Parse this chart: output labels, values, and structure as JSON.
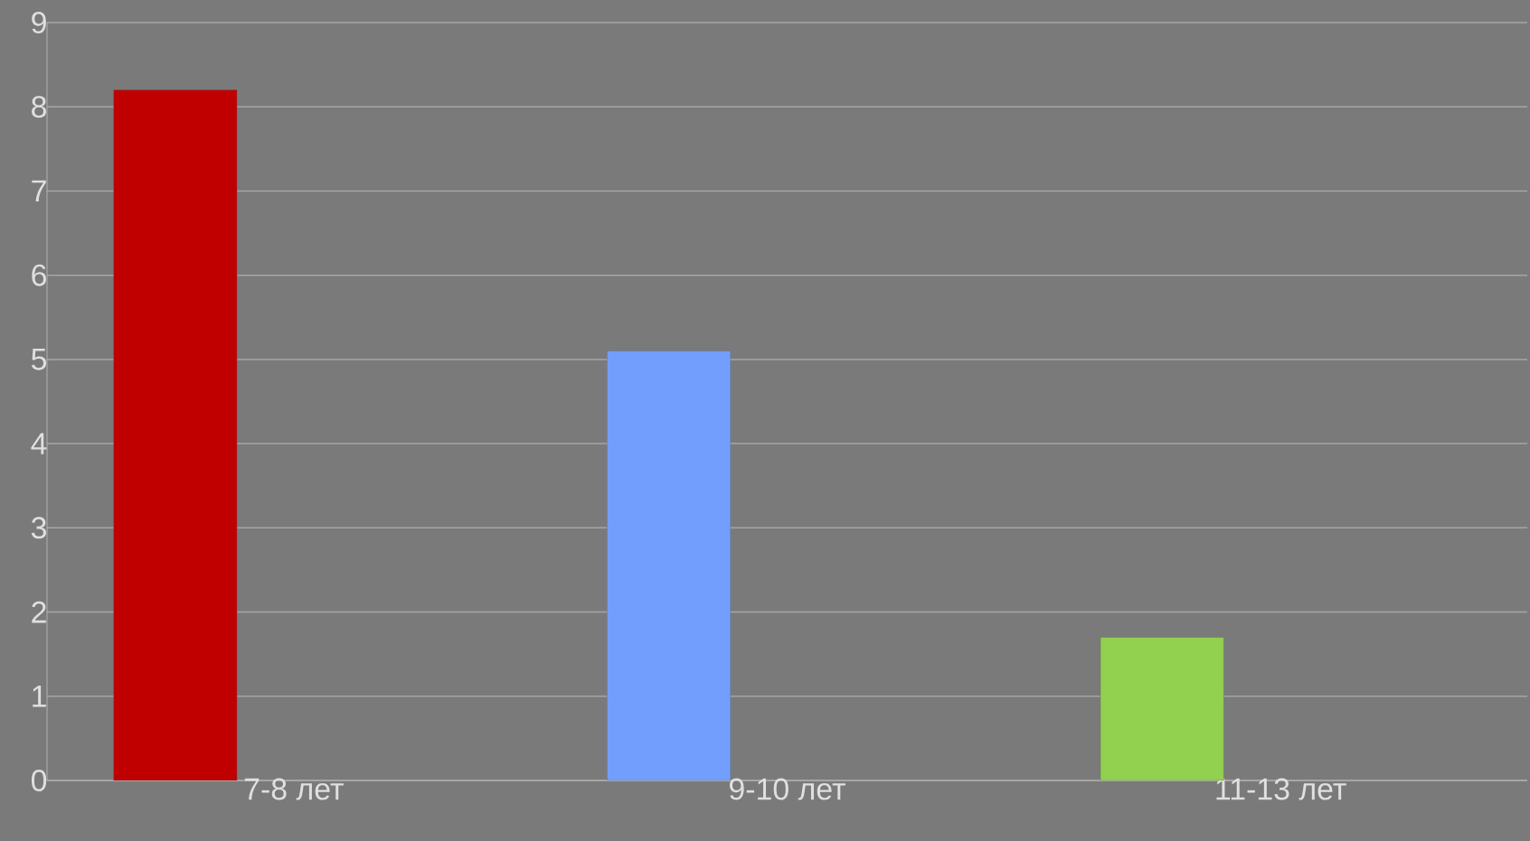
{
  "chart_data": {
    "type": "bar",
    "categories": [
      "7-8 лет",
      "9-10 лет",
      "11-13 лет"
    ],
    "values": [
      8.2,
      5.1,
      1.7
    ],
    "colors": [
      "#c00000",
      "#729ffe",
      "#92d050"
    ],
    "ylim": [
      0,
      9
    ],
    "yticks": [
      0,
      1,
      2,
      3,
      4,
      5,
      6,
      7,
      8,
      9
    ],
    "grid": "y"
  }
}
